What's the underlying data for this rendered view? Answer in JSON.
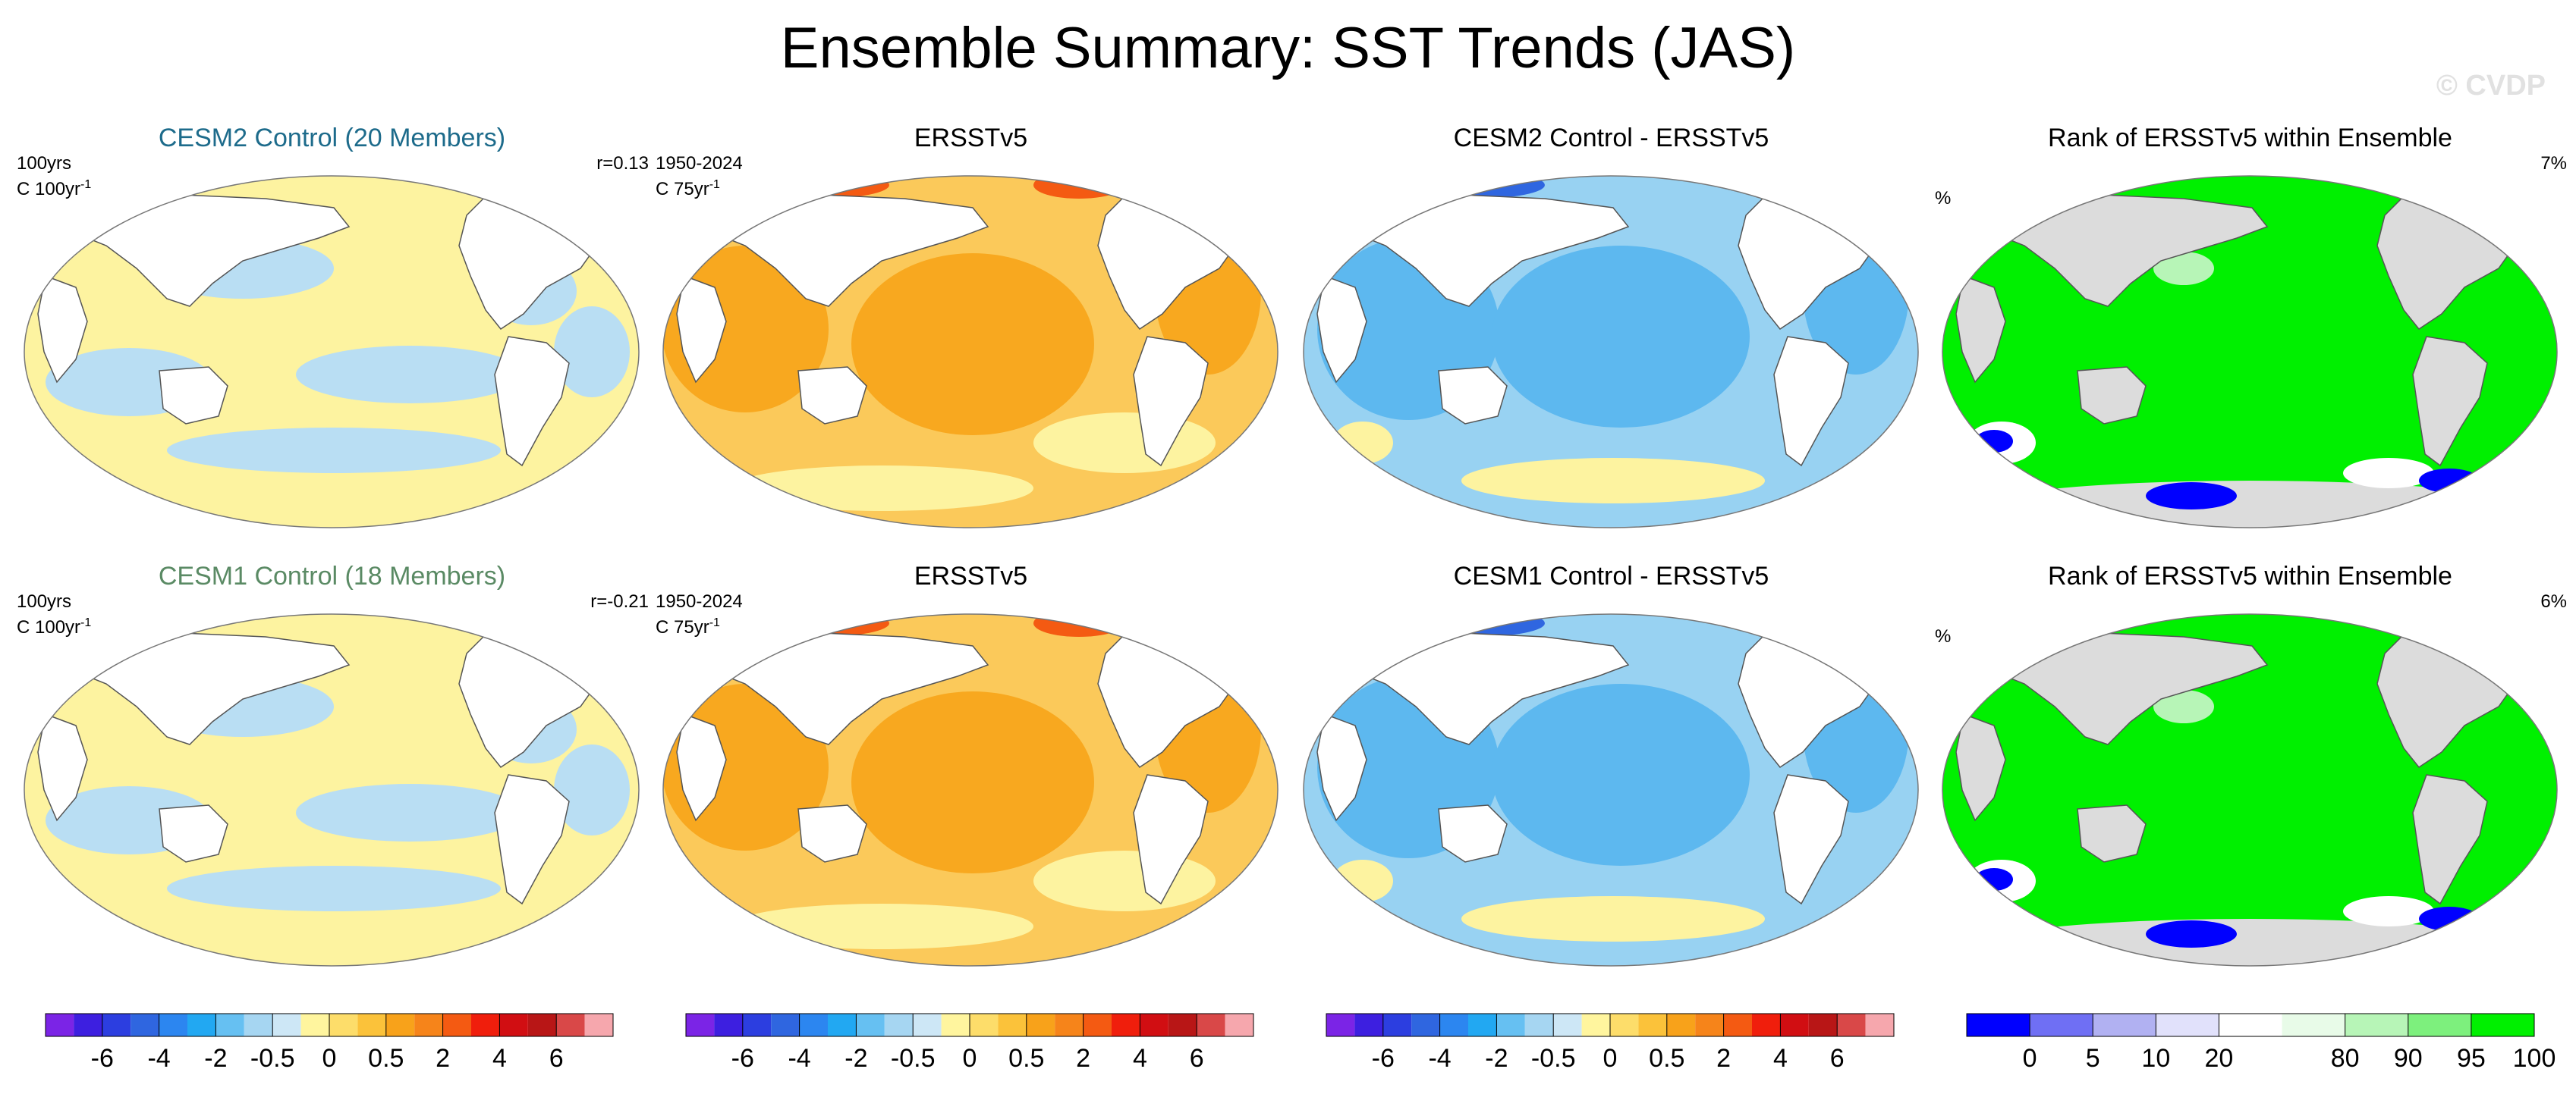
{
  "title": "Ensemble Summary: SST Trends (JAS)",
  "watermark": "© CVDP",
  "colors": {
    "ocean_warm_light": "#fdf3a0",
    "ocean_cool_light": "#b9def3",
    "ocean_orange": "#f8a81f",
    "ocean_light_orange": "#fbc95a",
    "ocean_blue": "#5db8ef",
    "ocean_light_blue": "#98d2f2",
    "rank_green": "#00f000",
    "rank_land": "#dcdcdc",
    "map_land": "#ffffff"
  },
  "rows": [
    {
      "model": {
        "title": "CESM2 Control (20 Members)",
        "title_color": "#1d6b8b",
        "left_line1": "100yrs",
        "left_line2": "C 100yr",
        "left_sup": "-1",
        "right": "r=0.13"
      },
      "obs": {
        "title": "ERSSTv5",
        "left_line1": "1950-2024",
        "left_line2": "C 75yr",
        "left_sup": "-1"
      },
      "diff": {
        "title": "CESM2 Control - ERSSTv5"
      },
      "rank": {
        "title": "Rank of ERSSTv5 within Ensemble",
        "left": "%",
        "right": "7%"
      }
    },
    {
      "model": {
        "title": "CESM1 Control (18 Members)",
        "title_color": "#5a8a64",
        "left_line1": "100yrs",
        "left_line2": "C 100yr",
        "left_sup": "-1",
        "right": "r=-0.21"
      },
      "obs": {
        "title": "ERSSTv5",
        "left_line1": "1950-2024",
        "left_line2": "C 75yr",
        "left_sup": "-1"
      },
      "diff": {
        "title": "CESM1 Control - ERSSTv5"
      },
      "rank": {
        "title": "Rank of ERSSTv5 within Ensemble",
        "left": "%",
        "right": "6%"
      }
    }
  ],
  "colorbars": {
    "trend": {
      "colors": [
        "#7b24e6",
        "#3d1fe0",
        "#2c3ee0",
        "#2f66e0",
        "#2c86f0",
        "#22a8f2",
        "#66c0f2",
        "#a6d6f2",
        "#cde7f6",
        "#fff59e",
        "#fddd6a",
        "#fbc23a",
        "#f8a21a",
        "#f6841a",
        "#f45a12",
        "#f01e0c",
        "#d10e12",
        "#b81616",
        "#d94848",
        "#f6a7ad"
      ],
      "labels": [
        "-6",
        "-4",
        "-2",
        "-0.5",
        "0",
        "0.5",
        "2",
        "4",
        "6"
      ],
      "label_boundaries": [
        2,
        4,
        6,
        8,
        10,
        12,
        14,
        16,
        18
      ]
    },
    "rank": {
      "colors": [
        "#0000ff",
        "#6f6ff4",
        "#b1b1f2",
        "#e1e1fb",
        "#ffffff",
        "#e8fbe8",
        "#b7f5b7",
        "#7df07d",
        "#00f000"
      ],
      "labels": [
        "0",
        "5",
        "10",
        "20",
        "80",
        "90",
        "95",
        "100"
      ],
      "label_boundaries": [
        1,
        2,
        3,
        4,
        6,
        7,
        8,
        9
      ]
    }
  }
}
